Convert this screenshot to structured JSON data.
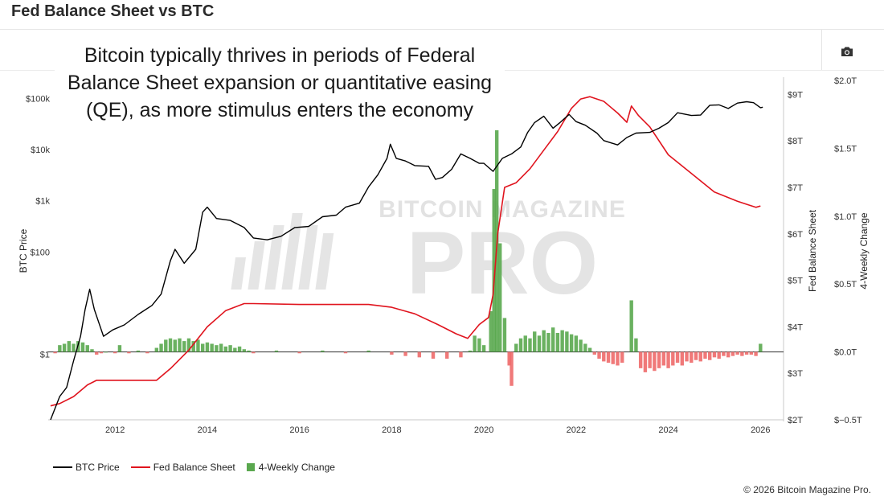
{
  "header": {
    "title": "Fed Balance Sheet vs BTC"
  },
  "toolbar": {
    "camera_icon": "camera-icon"
  },
  "annotation": {
    "lines": [
      "Bitcoin typically thrives in periods of Federal",
      "Balance Sheet expansion or quantitative easing",
      "(QE), as more stimulus enters the economy"
    ]
  },
  "watermark": {
    "line1": "BITCOIN MAGAZINE",
    "line2": "PRO"
  },
  "copyright": "© 2026 Bitcoin Magazine Pro.",
  "colors": {
    "btc": "#000000",
    "fed": "#e0141e",
    "positive": "#5aa84f",
    "negative": "#ee6a6a",
    "watermark": "#cfcfcf"
  },
  "chart_data": {
    "type": "line",
    "axes": {
      "x": {
        "ticks": [
          2012,
          2014,
          2016,
          2018,
          2020,
          2022,
          2024,
          2026
        ],
        "range": [
          2010.55,
          2026.5
        ]
      },
      "y_btc": {
        "label": "BTC Price",
        "scale": "log",
        "ticks": [
          1,
          100,
          1000,
          10000,
          100000
        ],
        "tick_labels": [
          "$1",
          "$100",
          "$1k",
          "$10k",
          "$100k"
        ],
        "range": [
          0.07,
          300000
        ]
      },
      "y_fed": {
        "label": "Fed Balance Sheet",
        "ticks": [
          2,
          3,
          4,
          5,
          6,
          7,
          8,
          9
        ],
        "tick_labels": [
          "$2T",
          "$3T",
          "$4T",
          "$5T",
          "$6T",
          "$7T",
          "$8T",
          "$9T"
        ],
        "unit": "trillion USD",
        "range": [
          2,
          9.3
        ]
      },
      "y_change": {
        "label": "4-Weekly Change",
        "ticks": [
          -0.5,
          0,
          0.5,
          1.0,
          1.5,
          2.0
        ],
        "tick_labels": [
          "$−0.5T",
          "$0.0T",
          "$0.5T",
          "$1.0T",
          "$1.5T",
          "$2.0T"
        ],
        "unit": "trillion USD",
        "range": [
          -0.5,
          2.0
        ]
      }
    },
    "legend": [
      "BTC Price",
      "Fed Balance Sheet",
      "4-Weekly Change"
    ],
    "series": [
      {
        "name": "BTC Price",
        "axis": "y_btc",
        "points": [
          [
            2010.6,
            0.07
          ],
          [
            2010.8,
            0.2
          ],
          [
            2010.95,
            0.3
          ],
          [
            2011.1,
            1
          ],
          [
            2011.25,
            3
          ],
          [
            2011.35,
            10
          ],
          [
            2011.45,
            25
          ],
          [
            2011.55,
            10
          ],
          [
            2011.75,
            3
          ],
          [
            2011.95,
            4
          ],
          [
            2012.2,
            5
          ],
          [
            2012.5,
            8
          ],
          [
            2012.8,
            12
          ],
          [
            2013.0,
            20
          ],
          [
            2013.2,
            90
          ],
          [
            2013.3,
            150
          ],
          [
            2013.5,
            80
          ],
          [
            2013.75,
            150
          ],
          [
            2013.9,
            800
          ],
          [
            2014.0,
            1000
          ],
          [
            2014.2,
            600
          ],
          [
            2014.5,
            550
          ],
          [
            2014.8,
            400
          ],
          [
            2015.0,
            250
          ],
          [
            2015.3,
            230
          ],
          [
            2015.6,
            270
          ],
          [
            2015.9,
            400
          ],
          [
            2016.2,
            420
          ],
          [
            2016.5,
            650
          ],
          [
            2016.8,
            700
          ],
          [
            2017.0,
            1000
          ],
          [
            2017.3,
            1200
          ],
          [
            2017.5,
            2500
          ],
          [
            2017.7,
            4300
          ],
          [
            2017.9,
            9000
          ],
          [
            2017.97,
            17000
          ],
          [
            2018.1,
            9000
          ],
          [
            2018.3,
            8000
          ],
          [
            2018.5,
            6500
          ],
          [
            2018.8,
            6300
          ],
          [
            2018.95,
            3500
          ],
          [
            2019.1,
            3800
          ],
          [
            2019.3,
            5500
          ],
          [
            2019.5,
            11000
          ],
          [
            2019.7,
            9000
          ],
          [
            2019.9,
            7200
          ],
          [
            2020.0,
            7200
          ],
          [
            2020.2,
            5000
          ],
          [
            2020.4,
            9000
          ],
          [
            2020.6,
            11000
          ],
          [
            2020.8,
            15000
          ],
          [
            2020.95,
            29000
          ],
          [
            2021.1,
            45000
          ],
          [
            2021.3,
            60000
          ],
          [
            2021.5,
            35000
          ],
          [
            2021.65,
            45000
          ],
          [
            2021.85,
            65000
          ],
          [
            2022.0,
            47000
          ],
          [
            2022.2,
            40000
          ],
          [
            2022.45,
            28000
          ],
          [
            2022.6,
            20000
          ],
          [
            2022.9,
            16500
          ],
          [
            2023.1,
            23000
          ],
          [
            2023.3,
            28000
          ],
          [
            2023.6,
            29000
          ],
          [
            2023.8,
            35000
          ],
          [
            2024.0,
            45000
          ],
          [
            2024.2,
            70000
          ],
          [
            2024.5,
            62000
          ],
          [
            2024.7,
            63000
          ],
          [
            2024.9,
            98000
          ],
          [
            2025.1,
            100000
          ],
          [
            2025.3,
            85000
          ],
          [
            2025.5,
            108000
          ],
          [
            2025.7,
            115000
          ],
          [
            2025.85,
            110000
          ],
          [
            2026.0,
            88000
          ],
          [
            2026.05,
            90000
          ]
        ]
      },
      {
        "name": "Fed Balance Sheet",
        "axis": "y_fed",
        "points": [
          [
            2010.6,
            2.3
          ],
          [
            2010.8,
            2.35
          ],
          [
            2011.1,
            2.5
          ],
          [
            2011.4,
            2.75
          ],
          [
            2011.6,
            2.85
          ],
          [
            2012.0,
            2.85
          ],
          [
            2012.5,
            2.85
          ],
          [
            2012.9,
            2.85
          ],
          [
            2013.2,
            3.1
          ],
          [
            2013.6,
            3.5
          ],
          [
            2014.0,
            4.0
          ],
          [
            2014.4,
            4.35
          ],
          [
            2014.8,
            4.5
          ],
          [
            2015.0,
            4.5
          ],
          [
            2016.0,
            4.48
          ],
          [
            2017.0,
            4.48
          ],
          [
            2017.5,
            4.48
          ],
          [
            2018.0,
            4.42
          ],
          [
            2018.5,
            4.28
          ],
          [
            2019.0,
            4.05
          ],
          [
            2019.4,
            3.85
          ],
          [
            2019.65,
            3.75
          ],
          [
            2019.9,
            4.05
          ],
          [
            2020.1,
            4.2
          ],
          [
            2020.2,
            4.7
          ],
          [
            2020.3,
            6.0
          ],
          [
            2020.45,
            7.0
          ],
          [
            2020.7,
            7.1
          ],
          [
            2021.0,
            7.4
          ],
          [
            2021.3,
            7.8
          ],
          [
            2021.6,
            8.2
          ],
          [
            2021.9,
            8.7
          ],
          [
            2022.1,
            8.9
          ],
          [
            2022.3,
            8.95
          ],
          [
            2022.6,
            8.85
          ],
          [
            2022.9,
            8.6
          ],
          [
            2023.1,
            8.4
          ],
          [
            2023.2,
            8.75
          ],
          [
            2023.35,
            8.55
          ],
          [
            2023.6,
            8.3
          ],
          [
            2024.0,
            7.7
          ],
          [
            2024.5,
            7.3
          ],
          [
            2025.0,
            6.9
          ],
          [
            2025.5,
            6.7
          ],
          [
            2025.9,
            6.57
          ],
          [
            2026.0,
            6.6
          ]
        ]
      },
      {
        "name": "4-Weekly Change",
        "axis": "y_change",
        "type": "bar",
        "points": [
          [
            2010.7,
            -0.01
          ],
          [
            2010.8,
            0.05
          ],
          [
            2010.9,
            0.06
          ],
          [
            2011.0,
            0.08
          ],
          [
            2011.1,
            0.06
          ],
          [
            2011.2,
            0.08
          ],
          [
            2011.3,
            0.07
          ],
          [
            2011.4,
            0.05
          ],
          [
            2011.5,
            0.02
          ],
          [
            2011.6,
            -0.02
          ],
          [
            2011.7,
            -0.01
          ],
          [
            2011.8,
            0.0
          ],
          [
            2012.0,
            -0.01
          ],
          [
            2012.1,
            0.05
          ],
          [
            2012.3,
            -0.01
          ],
          [
            2012.5,
            0.01
          ],
          [
            2012.7,
            -0.01
          ],
          [
            2012.9,
            0.03
          ],
          [
            2013.0,
            0.06
          ],
          [
            2013.1,
            0.09
          ],
          [
            2013.2,
            0.1
          ],
          [
            2013.3,
            0.09
          ],
          [
            2013.4,
            0.1
          ],
          [
            2013.5,
            0.08
          ],
          [
            2013.6,
            0.1
          ],
          [
            2013.7,
            0.08
          ],
          [
            2013.8,
            0.09
          ],
          [
            2013.9,
            0.06
          ],
          [
            2014.0,
            0.07
          ],
          [
            2014.1,
            0.06
          ],
          [
            2014.2,
            0.05
          ],
          [
            2014.3,
            0.06
          ],
          [
            2014.4,
            0.04
          ],
          [
            2014.5,
            0.05
          ],
          [
            2014.6,
            0.03
          ],
          [
            2014.7,
            0.04
          ],
          [
            2014.8,
            0.02
          ],
          [
            2014.9,
            0.01
          ],
          [
            2015.0,
            -0.01
          ],
          [
            2015.5,
            0.01
          ],
          [
            2016.0,
            -0.01
          ],
          [
            2016.5,
            0.01
          ],
          [
            2017.0,
            -0.01
          ],
          [
            2017.5,
            0.01
          ],
          [
            2018.0,
            -0.02
          ],
          [
            2018.3,
            -0.03
          ],
          [
            2018.6,
            -0.04
          ],
          [
            2018.9,
            -0.05
          ],
          [
            2019.2,
            -0.05
          ],
          [
            2019.5,
            -0.04
          ],
          [
            2019.7,
            0.01
          ],
          [
            2019.8,
            0.12
          ],
          [
            2019.9,
            0.1
          ],
          [
            2020.0,
            0.05
          ],
          [
            2020.15,
            0.3
          ],
          [
            2020.22,
            1.2
          ],
          [
            2020.28,
            1.75
          ],
          [
            2020.35,
            0.8
          ],
          [
            2020.45,
            0.25
          ],
          [
            2020.55,
            -0.1
          ],
          [
            2020.6,
            -0.25
          ],
          [
            2020.7,
            0.06
          ],
          [
            2020.8,
            0.1
          ],
          [
            2020.9,
            0.12
          ],
          [
            2021.0,
            0.1
          ],
          [
            2021.1,
            0.15
          ],
          [
            2021.2,
            0.12
          ],
          [
            2021.3,
            0.16
          ],
          [
            2021.4,
            0.14
          ],
          [
            2021.5,
            0.18
          ],
          [
            2021.6,
            0.14
          ],
          [
            2021.7,
            0.16
          ],
          [
            2021.8,
            0.15
          ],
          [
            2021.9,
            0.13
          ],
          [
            2022.0,
            0.12
          ],
          [
            2022.1,
            0.09
          ],
          [
            2022.2,
            0.06
          ],
          [
            2022.3,
            0.03
          ],
          [
            2022.4,
            -0.02
          ],
          [
            2022.5,
            -0.05
          ],
          [
            2022.6,
            -0.07
          ],
          [
            2022.7,
            -0.08
          ],
          [
            2022.8,
            -0.09
          ],
          [
            2022.9,
            -0.1
          ],
          [
            2023.0,
            -0.08
          ],
          [
            2023.2,
            0.38
          ],
          [
            2023.3,
            0.1
          ],
          [
            2023.4,
            -0.12
          ],
          [
            2023.5,
            -0.15
          ],
          [
            2023.6,
            -0.12
          ],
          [
            2023.7,
            -0.14
          ],
          [
            2023.8,
            -0.12
          ],
          [
            2023.9,
            -0.1
          ],
          [
            2024.0,
            -0.12
          ],
          [
            2024.1,
            -0.1
          ],
          [
            2024.2,
            -0.08
          ],
          [
            2024.3,
            -0.1
          ],
          [
            2024.4,
            -0.07
          ],
          [
            2024.5,
            -0.08
          ],
          [
            2024.6,
            -0.06
          ],
          [
            2024.7,
            -0.07
          ],
          [
            2024.8,
            -0.05
          ],
          [
            2024.9,
            -0.06
          ],
          [
            2025.0,
            -0.04
          ],
          [
            2025.1,
            -0.05
          ],
          [
            2025.2,
            -0.03
          ],
          [
            2025.3,
            -0.04
          ],
          [
            2025.4,
            -0.03
          ],
          [
            2025.5,
            -0.02
          ],
          [
            2025.6,
            -0.03
          ],
          [
            2025.7,
            -0.02
          ],
          [
            2025.8,
            -0.02
          ],
          [
            2025.9,
            -0.03
          ],
          [
            2026.0,
            0.06
          ]
        ]
      }
    ]
  }
}
